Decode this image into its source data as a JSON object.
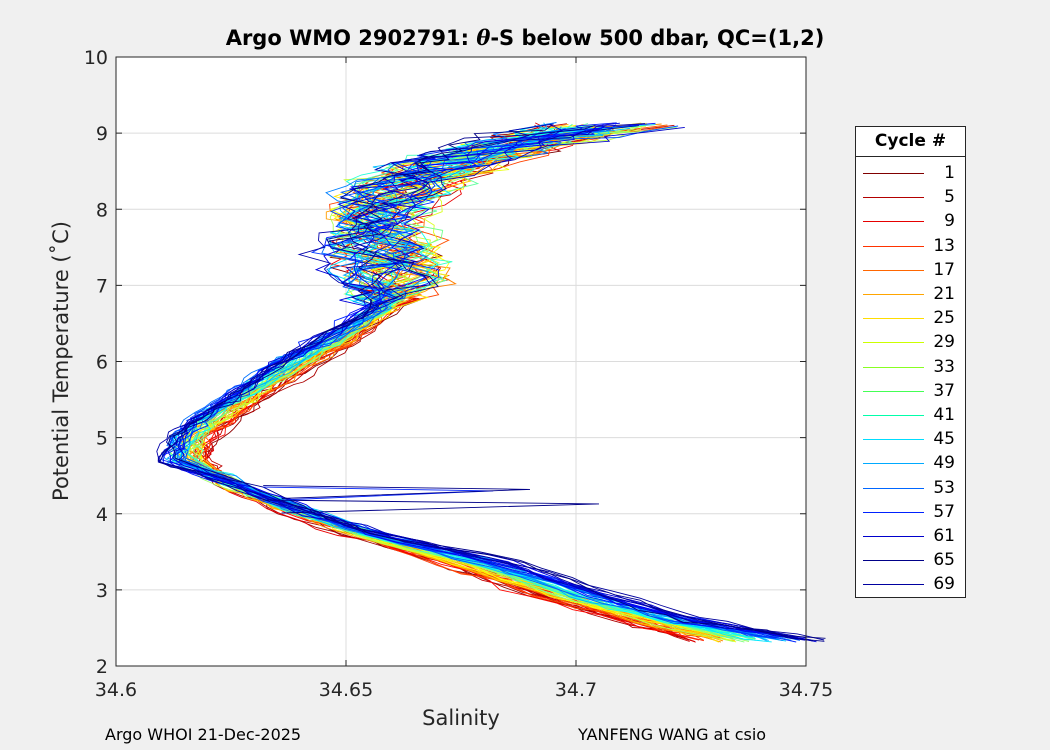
{
  "title_prefix": "Argo WMO 2902791: ",
  "title_theta": "θ",
  "title_suffix": "-S below 500 dbar,  QC=(1,2)",
  "footer_left": "Argo WHOI 21-Dec-2025",
  "footer_right": "YANFENG WANG at csio",
  "legend_title": "Cycle #",
  "chart_data": {
    "type": "line",
    "title": "Argo WMO 2902791: θ-S below 500 dbar,  QC=(1,2)",
    "xlabel": "Salinity",
    "ylabel": "Potential Temperature (˚C)",
    "xlim": [
      34.6,
      34.75
    ],
    "ylim": [
      2,
      10
    ],
    "xticks": [
      34.6,
      34.65,
      34.7,
      34.75
    ],
    "xtick_labels": [
      "34.6",
      "34.65",
      "34.7",
      "34.75"
    ],
    "yticks": [
      2,
      3,
      4,
      5,
      6,
      7,
      8,
      9,
      10
    ],
    "ytick_labels": [
      "2",
      "3",
      "4",
      "5",
      "6",
      "7",
      "8",
      "9",
      "10"
    ],
    "grid": true,
    "legend_position": "right",
    "legend_title": "Cycle #",
    "legend_entries": [
      {
        "label": "1",
        "color": "#800000"
      },
      {
        "label": "5",
        "color": "#b30000"
      },
      {
        "label": "9",
        "color": "#e60000"
      },
      {
        "label": "13",
        "color": "#ff3300"
      },
      {
        "label": "17",
        "color": "#ff6600"
      },
      {
        "label": "21",
        "color": "#ffa500"
      },
      {
        "label": "25",
        "color": "#ffdd00"
      },
      {
        "label": "29",
        "color": "#ccff00"
      },
      {
        "label": "33",
        "color": "#88ff22"
      },
      {
        "label": "37",
        "color": "#44ff55"
      },
      {
        "label": "41",
        "color": "#00ffaa"
      },
      {
        "label": "45",
        "color": "#00ddff"
      },
      {
        "label": "49",
        "color": "#00aaff"
      },
      {
        "label": "53",
        "color": "#0066ff"
      },
      {
        "label": "57",
        "color": "#0022ff"
      },
      {
        "label": "61",
        "color": "#0000cc"
      },
      {
        "label": "65",
        "color": "#000088"
      },
      {
        "label": "69",
        "color": "#0000a0"
      }
    ],
    "series_template": {
      "description": "representative θ-S profile shape shared by all cycles (salinity, potential temperature)",
      "points": [
        [
          34.724,
          2.35
        ],
        [
          34.71,
          2.6
        ],
        [
          34.69,
          2.95
        ],
        [
          34.67,
          3.35
        ],
        [
          34.65,
          3.75
        ],
        [
          34.635,
          4.1
        ],
        [
          34.624,
          4.4
        ],
        [
          34.619,
          4.7
        ],
        [
          34.62,
          5.0
        ],
        [
          34.626,
          5.3
        ],
        [
          34.633,
          5.6
        ],
        [
          34.642,
          5.95
        ],
        [
          34.652,
          6.3
        ],
        [
          34.66,
          6.7
        ],
        [
          34.662,
          7.1
        ],
        [
          34.66,
          7.5
        ],
        [
          34.658,
          7.9
        ],
        [
          34.665,
          8.3
        ],
        [
          34.674,
          8.6
        ],
        [
          34.688,
          8.85
        ],
        [
          34.71,
          9.1
        ]
      ]
    }
  }
}
